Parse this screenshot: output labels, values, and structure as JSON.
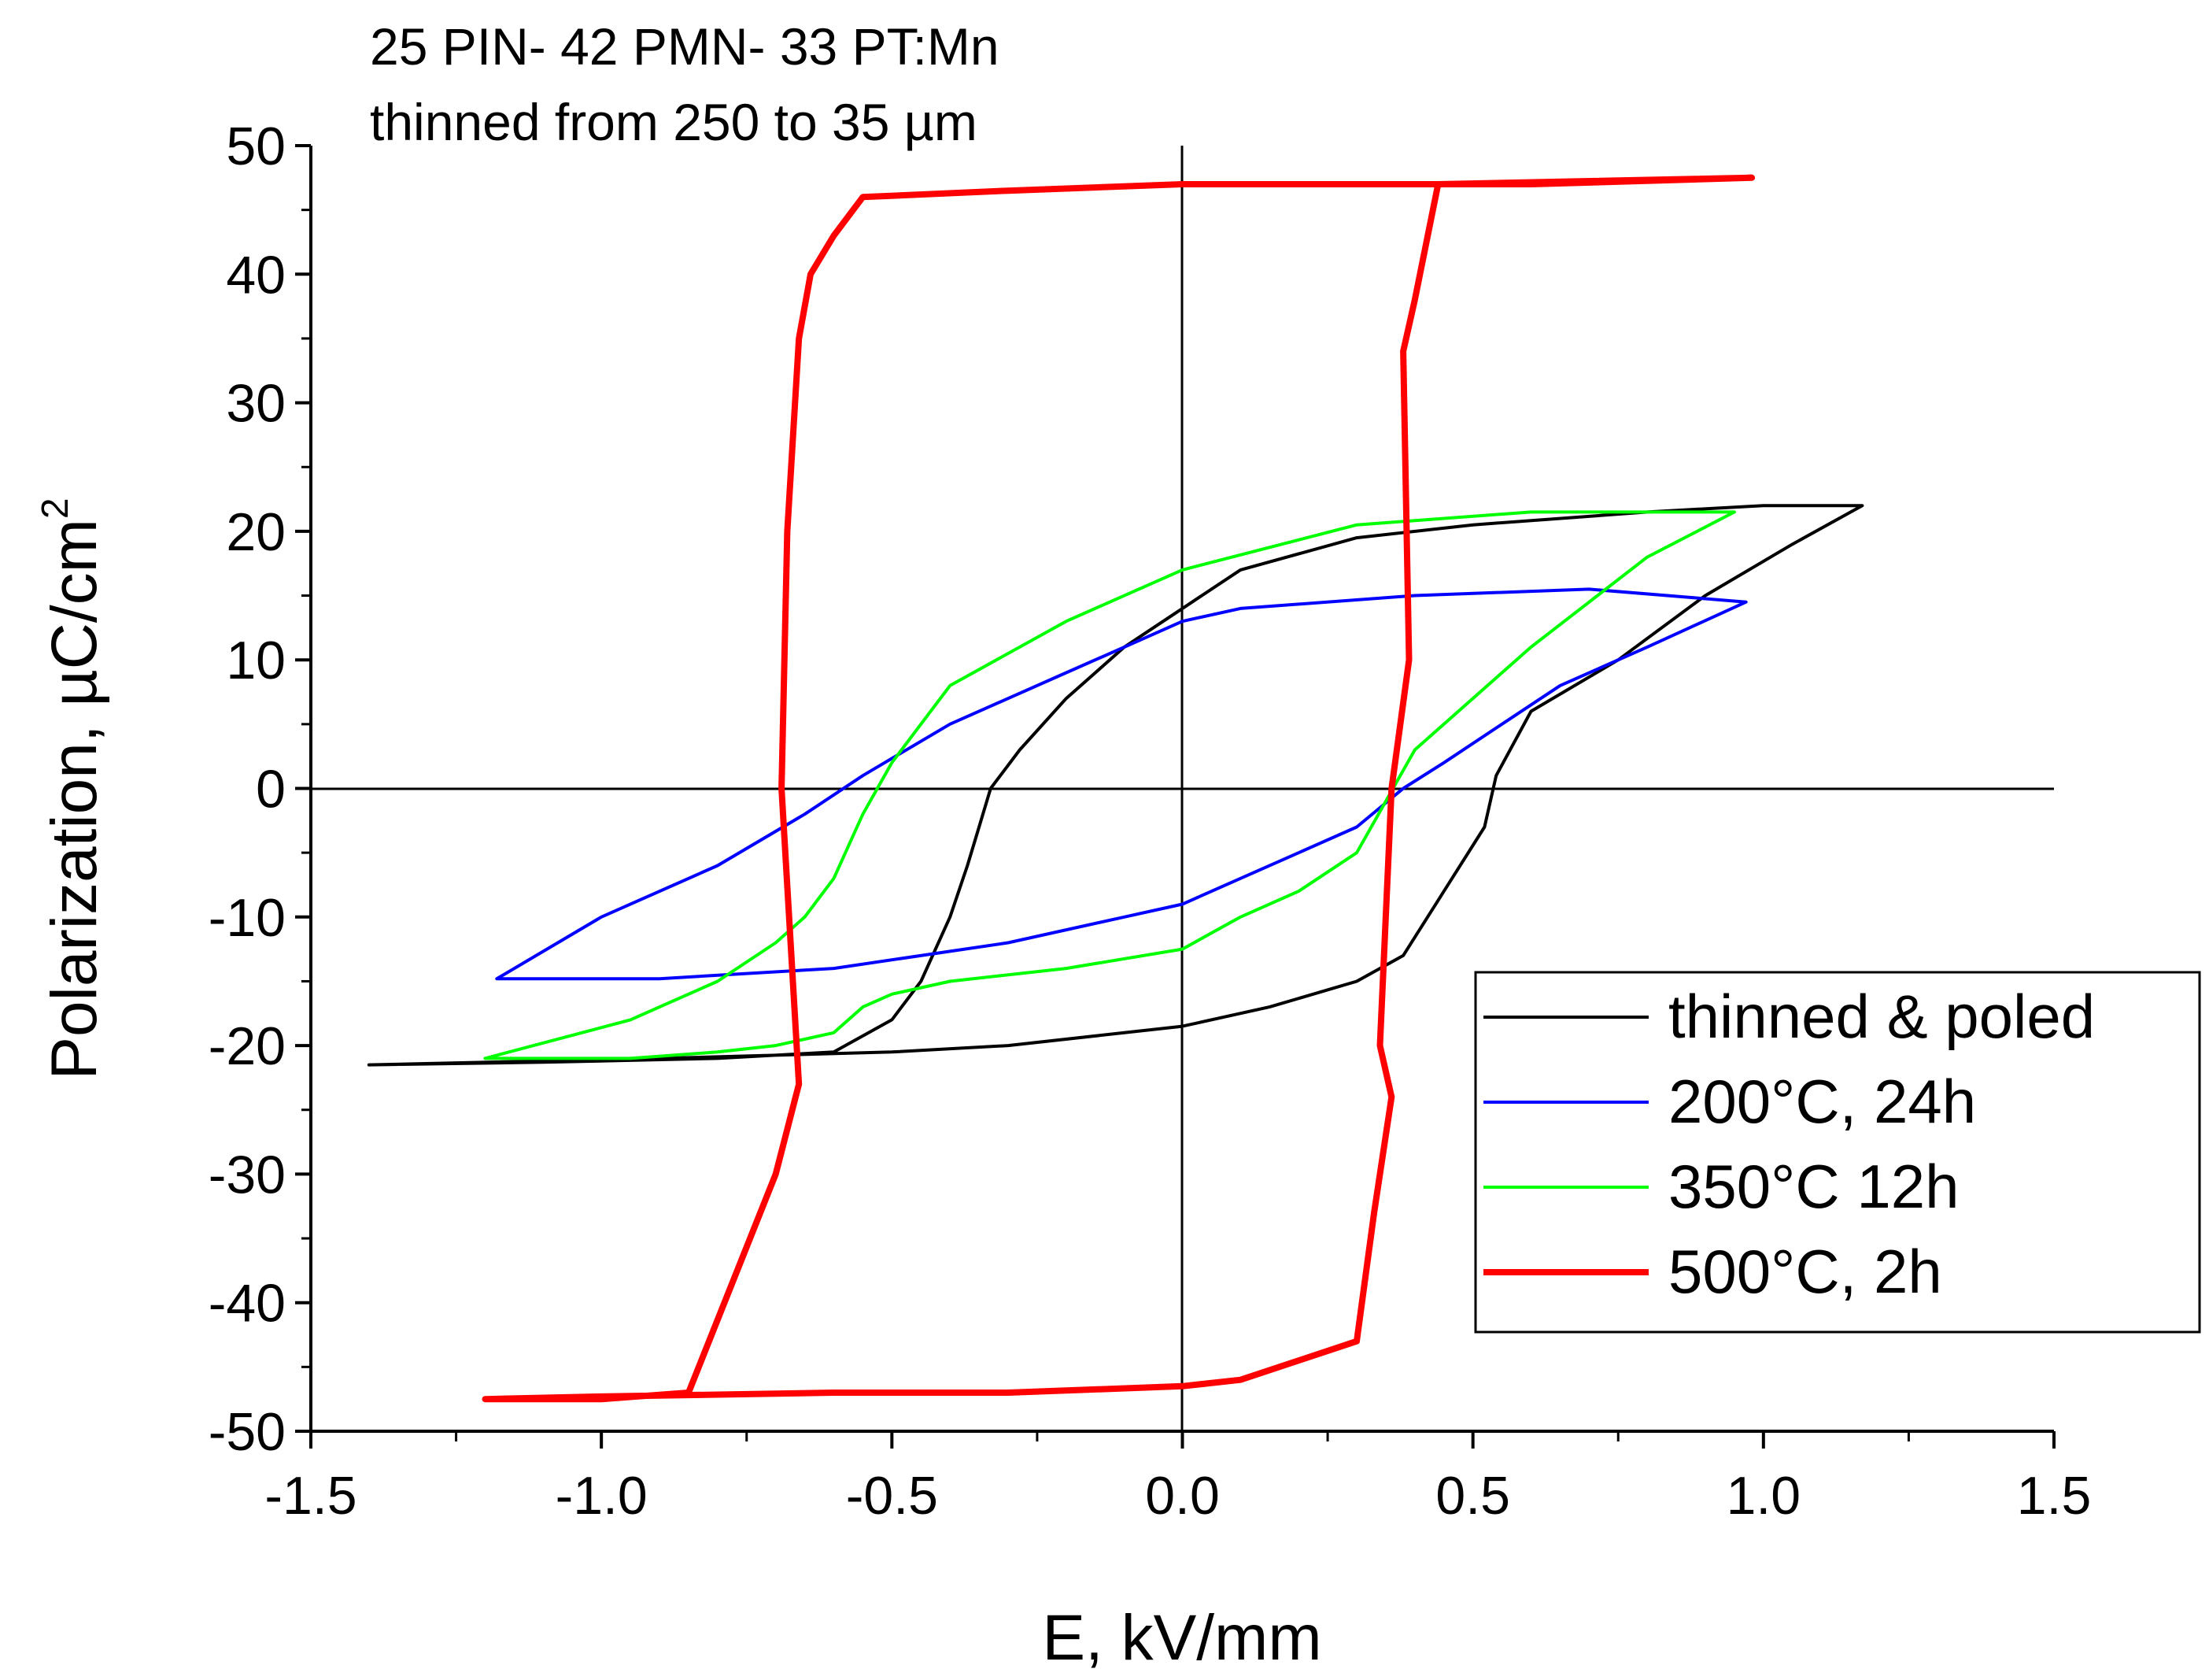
{
  "chart_data": {
    "type": "line",
    "title": "25 PIN- 42 PMN- 33 PT:Mn",
    "subtitle": "thinned from 250 to 35 µm",
    "xlabel": "E, kV/mm",
    "ylabel": "Polarization, µC/cm",
    "ylabel_superscript": "2",
    "xlim": [
      -1.5,
      1.5
    ],
    "ylim": [
      -50,
      50
    ],
    "xticks": [
      -1.5,
      -1.0,
      -0.5,
      0.0,
      0.5,
      1.0,
      1.5
    ],
    "xtick_labels": [
      "-1.5",
      "-1.0",
      "-0.5",
      "0.0",
      "0.5",
      "1.0",
      "1.5"
    ],
    "yticks": [
      -50,
      -40,
      -30,
      -20,
      -10,
      0,
      10,
      20,
      30,
      40,
      50
    ],
    "ytick_labels": [
      "-50",
      "-40",
      "-30",
      "-20",
      "-10",
      "0",
      "10",
      "20",
      "30",
      "40",
      "50"
    ],
    "legend_position": "lower-right",
    "series": [
      {
        "name": "thinned & poled",
        "color": "#000000",
        "x": [
          -1.4,
          -0.9,
          -0.5,
          -0.3,
          -0.1,
          0.0,
          0.15,
          0.3,
          0.38,
          0.45,
          0.52,
          0.54,
          0.6,
          0.75,
          0.9,
          1.05,
          1.17,
          1.0,
          0.8,
          0.5,
          0.3,
          0.1,
          0.0,
          -0.1,
          -0.2,
          -0.28,
          -0.33,
          -0.35,
          -0.37,
          -0.4,
          -0.45,
          -0.5,
          -0.6,
          -0.8,
          -1.1,
          -1.4
        ],
        "y": [
          -21.5,
          -21,
          -20.5,
          -20,
          -19,
          -18.5,
          -17,
          -15,
          -13,
          -8,
          -3,
          1,
          6,
          10,
          15,
          19,
          22,
          22,
          21.5,
          20.5,
          19.5,
          17,
          14,
          11,
          7,
          3,
          0,
          -3,
          -6,
          -10,
          -15,
          -18,
          -20.5,
          -21,
          -21.3,
          -21.5
        ]
      },
      {
        "name": "200°C, 24h",
        "color": "#0000ff",
        "x": [
          -1.18,
          -0.9,
          -0.6,
          -0.3,
          -0.1,
          0.0,
          0.1,
          0.2,
          0.3,
          0.38,
          0.45,
          0.55,
          0.65,
          0.8,
          0.97,
          0.7,
          0.4,
          0.1,
          0.0,
          -0.1,
          -0.2,
          -0.3,
          -0.4,
          -0.55,
          -0.65,
          -0.8,
          -1.0,
          -1.18
        ],
        "y": [
          -14.8,
          -14.8,
          -14,
          -12,
          -10,
          -9,
          -7,
          -5,
          -3,
          0,
          2,
          5,
          8,
          11,
          14.5,
          15.5,
          15,
          14,
          13,
          11,
          9,
          7,
          5,
          1,
          -2,
          -6,
          -10,
          -14.8
        ]
      },
      {
        "name": "350°C 12h",
        "color": "#00ff00",
        "x": [
          -1.2,
          -0.95,
          -0.8,
          -0.7,
          -0.6,
          -0.55,
          -0.5,
          -0.4,
          -0.2,
          0.0,
          0.1,
          0.2,
          0.3,
          0.4,
          0.6,
          0.8,
          0.95,
          0.6,
          0.3,
          0.0,
          -0.2,
          -0.4,
          -0.5,
          -0.55,
          -0.6,
          -0.65,
          -0.7,
          -0.8,
          -0.95,
          -1.2
        ],
        "y": [
          -21,
          -21,
          -20.5,
          -20,
          -19,
          -17,
          -16,
          -15,
          -14,
          -12.5,
          -10,
          -8,
          -5,
          3,
          11,
          18,
          21.5,
          21.5,
          20.5,
          17,
          13,
          8,
          2,
          -2,
          -7,
          -10,
          -12,
          -15,
          -18,
          -21
        ]
      },
      {
        "name": "500°C, 2h",
        "color": "#ff0000",
        "x": [
          -0.85,
          -0.7,
          -0.66,
          -0.69,
          -0.68,
          -0.66,
          -0.64,
          -0.6,
          -0.55,
          -0.3,
          0.0,
          0.3,
          0.44,
          0.6,
          0.98,
          0.44,
          0.4,
          0.38,
          0.39,
          0.36,
          0.35,
          0.34,
          0.36,
          0.33,
          0.3,
          0.1,
          0.0,
          -0.3,
          -0.6,
          -1.0,
          -1.2,
          -1.0,
          -0.85
        ],
        "y": [
          -47,
          -30,
          -23,
          0,
          20,
          35,
          40,
          43,
          46,
          46.5,
          47,
          47,
          47,
          47,
          47.5,
          47,
          38,
          34,
          10,
          0,
          -10,
          -20,
          -24,
          -33,
          -43,
          -46,
          -46.5,
          -47,
          -47,
          -47.3,
          -47.5,
          -47.5,
          -47
        ]
      }
    ]
  }
}
